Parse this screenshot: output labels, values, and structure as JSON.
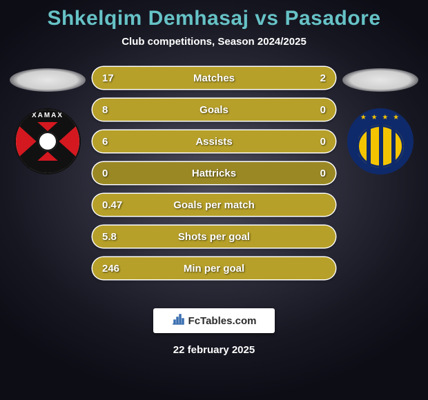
{
  "title": {
    "text": "Shkelqim Demhasaj vs Pasadore",
    "color": "#66c2c6",
    "fontsize": 30
  },
  "subtitle": {
    "text": "Club competitions, Season 2024/2025",
    "color": "#ffffff",
    "fontsize": 15
  },
  "date": {
    "text": "22 february 2025",
    "color": "#ffffff",
    "fontsize": 15
  },
  "footer_brand": "FcTables.com",
  "players": {
    "left": {
      "name": "Shkelqim Demhasaj",
      "club": "Xamax"
    },
    "right": {
      "name": "Pasadore",
      "club": "Sportivo Luqueño"
    }
  },
  "bar_style": {
    "height": 32,
    "radius": 16,
    "gap": 14,
    "track_color": "#9a8824",
    "fill_color": "#b6a029",
    "outline_color": "#ffffff",
    "value_fontsize": 15,
    "label_fontsize": 15,
    "text_color": "#ffffff"
  },
  "stats": [
    {
      "label": "Matches",
      "left_val": "17",
      "right_val": "2",
      "left_pct": 89,
      "right_pct": 11
    },
    {
      "label": "Goals",
      "left_val": "8",
      "right_val": "0",
      "left_pct": 100,
      "right_pct": 0
    },
    {
      "label": "Assists",
      "left_val": "6",
      "right_val": "0",
      "left_pct": 100,
      "right_pct": 0
    },
    {
      "label": "Hattricks",
      "left_val": "0",
      "right_val": "0",
      "left_pct": 0,
      "right_pct": 0
    },
    {
      "label": "Goals per match",
      "left_val": "0.47",
      "right_val": "",
      "left_pct": 100,
      "right_pct": 0
    },
    {
      "label": "Shots per goal",
      "left_val": "5.8",
      "right_val": "",
      "left_pct": 100,
      "right_pct": 0
    },
    {
      "label": "Min per goal",
      "left_val": "246",
      "right_val": "",
      "left_pct": 100,
      "right_pct": 0
    }
  ]
}
